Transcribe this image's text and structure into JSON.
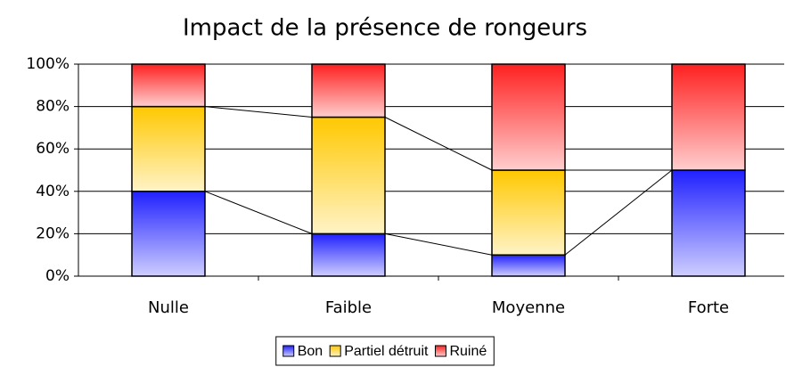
{
  "chart_data": {
    "type": "stacked_bar_100",
    "title": "Impact de la présence de rongeurs",
    "categories": [
      "Nulle",
      "Faible",
      "Moyenne",
      "Forte"
    ],
    "series": [
      {
        "name": "Bon",
        "color": "#2020ff",
        "values": [
          40,
          20,
          10,
          50
        ]
      },
      {
        "name": "Partiel détruit",
        "color": "#ffc800",
        "values": [
          40,
          55,
          40,
          0
        ]
      },
      {
        "name": "Ruiné",
        "color": "#ff2020",
        "values": [
          20,
          25,
          50,
          50
        ]
      }
    ],
    "ylim": [
      0,
      100
    ],
    "yticks": [
      {
        "value": 0,
        "label": "0%"
      },
      {
        "value": 20,
        "label": "20%"
      },
      {
        "value": 40,
        "label": "40%"
      },
      {
        "value": 60,
        "label": "60%"
      },
      {
        "value": 80,
        "label": "80%"
      },
      {
        "value": 100,
        "label": "100%"
      }
    ],
    "grid": true,
    "legend": "bottom"
  }
}
